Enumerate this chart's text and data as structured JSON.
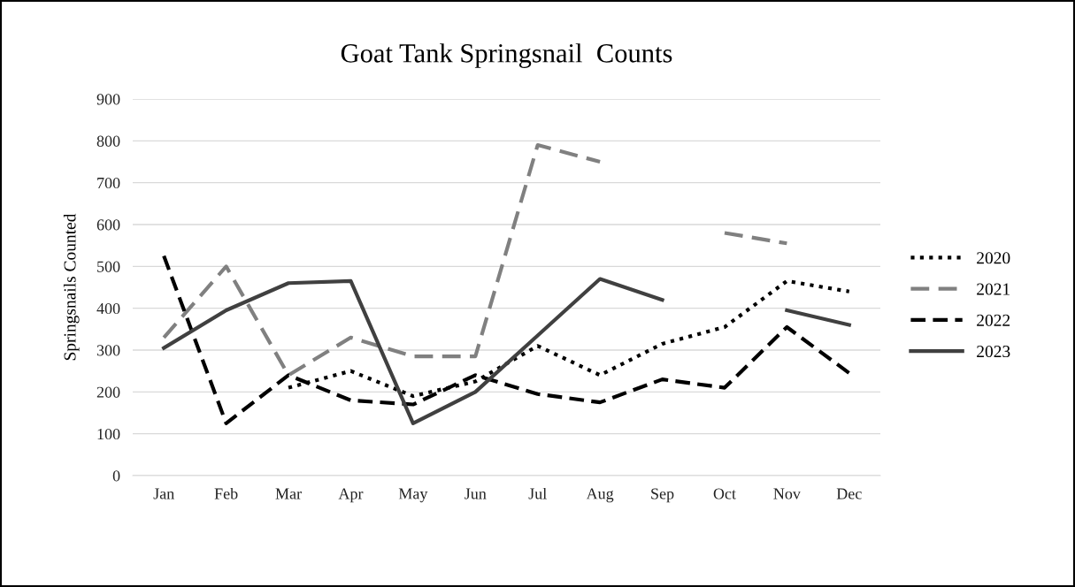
{
  "chart_data": {
    "type": "line",
    "title": "Goat Tank Springsnail  Counts",
    "ylabel": "Springsnails Counted",
    "categories": [
      "Jan",
      "Feb",
      "Mar",
      "Apr",
      "May",
      "Jun",
      "Jul",
      "Aug",
      "Sep",
      "Oct",
      "Nov",
      "Dec"
    ],
    "series": [
      {
        "name": "2020",
        "color": "#000000",
        "line_style": "dotted",
        "values": [
          null,
          null,
          210,
          250,
          190,
          225,
          310,
          240,
          315,
          355,
          465,
          440
        ]
      },
      {
        "name": "2021",
        "color": "#808080",
        "line_style": "dashed",
        "values": [
          330,
          500,
          240,
          330,
          285,
          285,
          790,
          750,
          null,
          580,
          555,
          null
        ]
      },
      {
        "name": "2022",
        "color": "#000000",
        "line_style": "dashed",
        "values": [
          525,
          125,
          240,
          180,
          170,
          240,
          195,
          175,
          230,
          210,
          355,
          245
        ]
      },
      {
        "name": "2023",
        "color": "#404040",
        "line_style": "solid",
        "values": [
          305,
          395,
          460,
          465,
          125,
          200,
          335,
          470,
          420,
          null,
          395,
          360
        ]
      }
    ],
    "ylim": [
      0,
      900
    ],
    "yticks": [
      0,
      100,
      200,
      300,
      400,
      500,
      600,
      700,
      800,
      900
    ],
    "grid": "y",
    "legend": "right",
    "marker": "none"
  }
}
